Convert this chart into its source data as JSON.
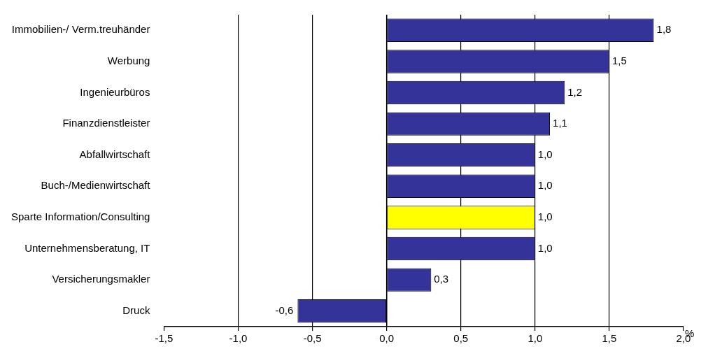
{
  "chart_data": {
    "type": "bar",
    "orientation": "horizontal",
    "xlabel": "%",
    "categories": [
      "Immobilien-/ Verm.treuhänder",
      "Werbung",
      "Ingenieurbüros",
      "Finanzdienstleister",
      "Abfallwirtschaft",
      "Buch-/Medienwirtschaft",
      "Sparte Information/Consulting",
      "Unternehmensberatung, IT",
      "Versicherungsmakler",
      "Druck"
    ],
    "values": [
      1.8,
      1.5,
      1.2,
      1.1,
      1.0,
      1.0,
      1.0,
      1.0,
      0.3,
      -0.6
    ],
    "colors": [
      "#333399",
      "#333399",
      "#333399",
      "#333399",
      "#333399",
      "#333399",
      "#ffff00",
      "#333399",
      "#333399",
      "#333399"
    ],
    "value_labels": [
      "1,8",
      "1,5",
      "1,2",
      "1,1",
      "1,0",
      "1,0",
      "1,0",
      "1,0",
      "0,3",
      "-0,6"
    ],
    "xlim": [
      -1.5,
      2.0
    ],
    "xticks": [
      {
        "value": -1.5,
        "label": "-1,5"
      },
      {
        "value": -1.0,
        "label": "-1,0"
      },
      {
        "value": -0.5,
        "label": "-0,5"
      },
      {
        "value": 0,
        "label": "0,0"
      },
      {
        "value": 0.5,
        "label": "0,5"
      },
      {
        "value": 1.0,
        "label": "1,0"
      },
      {
        "value": 1.5,
        "label": "1,5"
      },
      {
        "value": 2.0,
        "label": "2,0"
      }
    ],
    "grid": "x",
    "legend": false
  }
}
